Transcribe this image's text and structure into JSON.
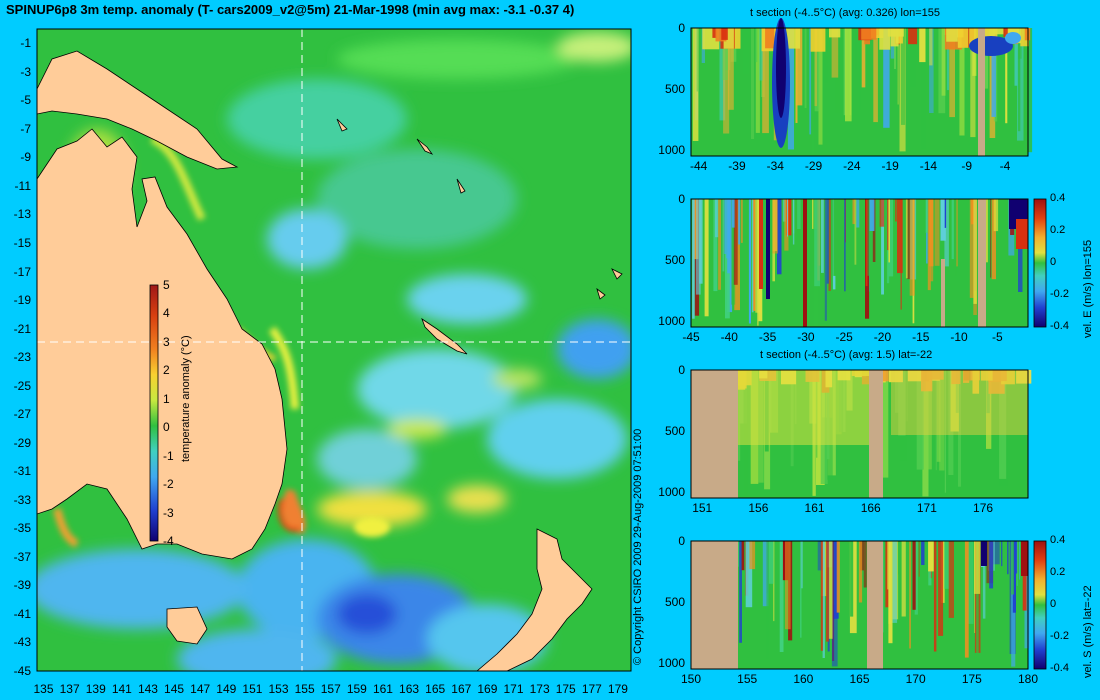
{
  "title": "SPINUP6p8 3m temp. anomaly (T- cars2009_v2@5m) 21-Mar-1998 (min avg max: -3.1 -0.37 4)",
  "copyright": "© Copyright CSIRO 2009   29-Aug-2009 07:51:00",
  "colors": {
    "page_bg": "#00ccff",
    "land": "#ffcc99",
    "section_land": "#c8aa88",
    "ocean_base": "#2fbf3a"
  },
  "chart_data": [
    {
      "type": "heatmap",
      "id": "map",
      "title": "SPINUP6p8 3m temp. anomaly (T- cars2009_v2@5m) 21-Mar-1998 (min avg max: -3.1 -0.37 4)",
      "x_ticks": [
        "135",
        "137",
        "139",
        "141",
        "143",
        "145",
        "147",
        "149",
        "151",
        "153",
        "155",
        "157",
        "159",
        "161",
        "163",
        "165",
        "167",
        "169",
        "171",
        "173",
        "175",
        "177",
        "179"
      ],
      "y_ticks": [
        "-1",
        "-3",
        "-5",
        "-7",
        "-9",
        "-11",
        "-13",
        "-15",
        "-17",
        "-19",
        "-21",
        "-23",
        "-25",
        "-27",
        "-29",
        "-31",
        "-33",
        "-35",
        "-37",
        "-39",
        "-41",
        "-43",
        "-45"
      ],
      "xlim": [
        134.5,
        180
      ],
      "ylim": [
        -45,
        0
      ],
      "colorbar": {
        "label": "temperature anomaly (°C)",
        "ticks": [
          "5",
          "4",
          "3",
          "2",
          "1",
          "0",
          "-1",
          "-2",
          "-3",
          "-4"
        ],
        "range": [
          -4,
          5
        ]
      },
      "crosshair": {
        "lon": 155,
        "lat": -22
      }
    },
    {
      "type": "heatmap",
      "id": "t-section-lon",
      "title": "t section (-4..5°C) (avg: 0.326) lon=155",
      "x_ticks": [
        "-44",
        "-39",
        "-34",
        "-29",
        "-24",
        "-19",
        "-14",
        "-9",
        "-4"
      ],
      "y_ticks": [
        "0",
        "500",
        "1000"
      ],
      "xlim": [
        -45,
        -1
      ],
      "ylim": [
        1050,
        0
      ]
    },
    {
      "type": "heatmap",
      "id": "vel-e-lon",
      "x_ticks": [
        "-45",
        "-40",
        "-35",
        "-30",
        "-25",
        "-20",
        "-15",
        "-10",
        "-5"
      ],
      "y_ticks": [
        "0",
        "500",
        "1000"
      ],
      "xlim": [
        -45,
        -1
      ],
      "ylim": [
        1050,
        0
      ],
      "colorbar": {
        "label": "vel. E (m/s) lon=155",
        "ticks": [
          "0.4",
          "0.2",
          "0",
          "-0.2",
          "-0.4"
        ],
        "range": [
          -0.4,
          0.4
        ]
      }
    },
    {
      "type": "heatmap",
      "id": "t-section-lat",
      "title": "t section (-4..5°C) (avg: 1.5) lat=-22",
      "x_ticks": [
        "151",
        "156",
        "161",
        "166",
        "171",
        "176"
      ],
      "y_ticks": [
        "0",
        "500",
        "1000"
      ],
      "xlim": [
        150,
        180
      ],
      "ylim": [
        1050,
        0
      ]
    },
    {
      "type": "heatmap",
      "id": "vel-s-lat",
      "x_ticks": [
        "150",
        "155",
        "160",
        "165",
        "170",
        "175",
        "180"
      ],
      "y_ticks": [
        "0",
        "500",
        "1000"
      ],
      "xlim": [
        150,
        180
      ],
      "ylim": [
        1050,
        0
      ],
      "colorbar": {
        "label": "vel. S (m/s) lat=-22",
        "ticks": [
          "0.4",
          "0.2",
          "0",
          "-0.2",
          "-0.4"
        ],
        "range": [
          -0.4,
          0.4
        ]
      }
    }
  ]
}
